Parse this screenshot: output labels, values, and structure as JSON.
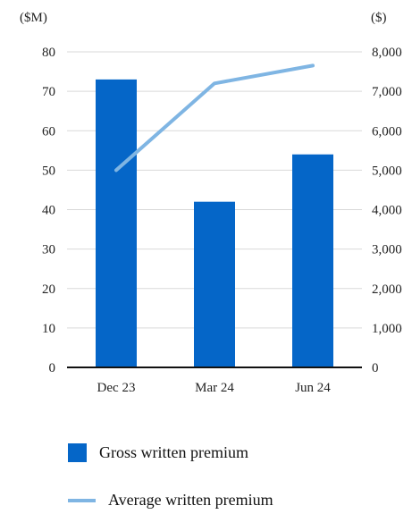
{
  "chart_data": {
    "type": "bar",
    "categories": [
      "Dec 23",
      "Mar 24",
      "Jun 24"
    ],
    "left_axis_unit": "($M)",
    "right_axis_unit": "($)",
    "left_ylim": [
      0,
      80
    ],
    "right_ylim": [
      0,
      8000
    ],
    "left_ticks": [
      "0",
      "10",
      "20",
      "30",
      "40",
      "50",
      "60",
      "70",
      "80"
    ],
    "right_ticks": [
      "0",
      "1,000",
      "2,000",
      "3,000",
      "4,000",
      "5,000",
      "6,000",
      "7,000",
      "8,000"
    ],
    "grid": true,
    "series": [
      {
        "name": "Gross written premium",
        "type": "bar",
        "axis": "left",
        "values": [
          73,
          42,
          54
        ],
        "color": "#0566c8"
      },
      {
        "name": "Average written premium",
        "type": "line",
        "axis": "right",
        "values": [
          5000,
          7200,
          7650
        ],
        "color": "#7fb5e3"
      }
    ],
    "legend_placement": "bottom"
  }
}
